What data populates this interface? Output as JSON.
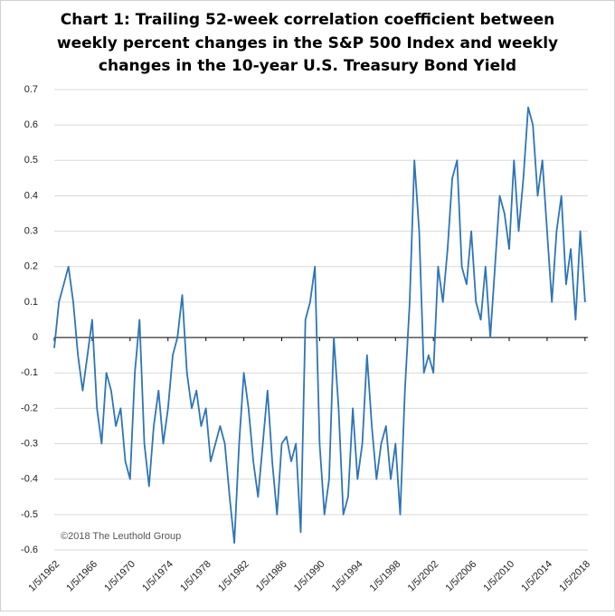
{
  "chart_data": {
    "type": "line",
    "title": [
      "Chart 1: Trailing 52-week correlation coefficient between",
      "weekly percent changes in the S&P 500 Index and weekly",
      "changes in the 10-year U.S. Treasury Bond Yield"
    ],
    "annotation": "©2018 The Leuthold Group",
    "color": "#2e75b6",
    "x": [
      1962,
      1962.5,
      1963,
      1963.5,
      1964,
      1964.5,
      1965,
      1965.5,
      1966,
      1966.5,
      1967,
      1967.5,
      1968,
      1968.5,
      1969,
      1969.5,
      1970,
      1970.5,
      1971,
      1971.5,
      1972,
      1972.5,
      1973,
      1973.5,
      1974,
      1974.5,
      1975,
      1975.5,
      1976,
      1976.5,
      1977,
      1977.5,
      1978,
      1978.5,
      1979,
      1979.5,
      1980,
      1980.5,
      1981,
      1981.5,
      1982,
      1982.5,
      1983,
      1983.5,
      1984,
      1984.5,
      1985,
      1985.5,
      1986,
      1986.5,
      1987,
      1987.5,
      1988,
      1988.5,
      1989,
      1989.5,
      1990,
      1990.5,
      1991,
      1991.5,
      1992,
      1992.5,
      1993,
      1993.5,
      1994,
      1994.5,
      1995,
      1995.5,
      1996,
      1996.5,
      1997,
      1997.5,
      1998,
      1998.5,
      1999,
      1999.5,
      2000,
      2000.5,
      2001,
      2001.5,
      2002,
      2002.5,
      2003,
      2003.5,
      2004,
      2004.5,
      2005,
      2005.5,
      2006,
      2006.5,
      2007,
      2007.5,
      2008,
      2008.5,
      2009,
      2009.5,
      2010,
      2010.5,
      2011,
      2011.5,
      2012,
      2012.5,
      2013,
      2013.5,
      2014,
      2014.5,
      2015,
      2015.5,
      2016,
      2016.5,
      2017,
      2017.5,
      2018
    ],
    "values": [
      -0.03,
      0.1,
      0.15,
      0.2,
      0.1,
      -0.05,
      -0.15,
      -0.05,
      0.05,
      -0.2,
      -0.3,
      -0.1,
      -0.15,
      -0.25,
      -0.2,
      -0.35,
      -0.4,
      -0.1,
      0.05,
      -0.3,
      -0.42,
      -0.25,
      -0.15,
      -0.3,
      -0.2,
      -0.05,
      0,
      0.12,
      -0.1,
      -0.2,
      -0.15,
      -0.25,
      -0.2,
      -0.35,
      -0.3,
      -0.25,
      -0.3,
      -0.45,
      -0.58,
      -0.3,
      -0.1,
      -0.2,
      -0.35,
      -0.45,
      -0.3,
      -0.15,
      -0.35,
      -0.5,
      -0.3,
      -0.28,
      -0.35,
      -0.3,
      -0.55,
      0.05,
      0.1,
      0.2,
      -0.3,
      -0.5,
      -0.4,
      0,
      -0.2,
      -0.5,
      -0.45,
      -0.2,
      -0.4,
      -0.3,
      -0.05,
      -0.25,
      -0.4,
      -0.3,
      -0.25,
      -0.4,
      -0.3,
      -0.5,
      -0.15,
      0.1,
      0.5,
      0.3,
      -0.1,
      -0.05,
      -0.1,
      0.2,
      0.1,
      0.25,
      0.45,
      0.5,
      0.2,
      0.15,
      0.3,
      0.1,
      0.05,
      0.2,
      0,
      0.2,
      0.4,
      0.35,
      0.25,
      0.5,
      0.3,
      0.45,
      0.65,
      0.6,
      0.4,
      0.5,
      0.3,
      0.1,
      0.3,
      0.4,
      0.15,
      0.25,
      0.05,
      0.3,
      0.1
    ],
    "xlim": [
      1962,
      2018.3
    ],
    "xticks": [
      {
        "value": 1962,
        "label": "1/5/1962"
      },
      {
        "value": 1966,
        "label": "1/5/1966"
      },
      {
        "value": 1970,
        "label": "1/5/1970"
      },
      {
        "value": 1974,
        "label": "1/5/1974"
      },
      {
        "value": 1978,
        "label": "1/5/1978"
      },
      {
        "value": 1982,
        "label": "1/5/1982"
      },
      {
        "value": 1986,
        "label": "1/5/1986"
      },
      {
        "value": 1990,
        "label": "1/5/1990"
      },
      {
        "value": 1994,
        "label": "1/5/1994"
      },
      {
        "value": 1998,
        "label": "1/5/1998"
      },
      {
        "value": 2002,
        "label": "1/5/2002"
      },
      {
        "value": 2006,
        "label": "1/5/2006"
      },
      {
        "value": 2010,
        "label": "1/5/2010"
      },
      {
        "value": 2014,
        "label": "1/5/2014"
      },
      {
        "value": 2018,
        "label": "1/5/2018"
      }
    ],
    "ylim": [
      -0.6,
      0.7
    ],
    "yticks": [
      -0.6,
      -0.5,
      -0.4,
      -0.3,
      -0.2,
      -0.1,
      0,
      0.1,
      0.2,
      0.3,
      0.4,
      0.5,
      0.6,
      0.7
    ],
    "grid": true
  }
}
